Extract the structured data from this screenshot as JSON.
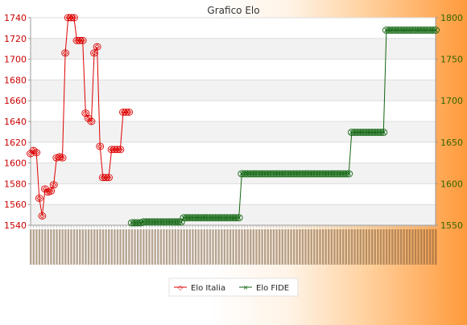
{
  "chart_data": {
    "type": "line",
    "title": "Grafico Elo",
    "grid": true,
    "legend_placement": "bottom-center",
    "left_axis": {
      "ticks": [
        1540,
        1560,
        1580,
        1600,
        1620,
        1640,
        1660,
        1680,
        1700,
        1720,
        1740
      ],
      "range": [
        1540,
        1740
      ],
      "color": "#cc0000"
    },
    "right_axis": {
      "ticks": [
        1550,
        1600,
        1650,
        1700,
        1750,
        1800
      ],
      "range": [
        1550,
        1800
      ],
      "color": "#336600"
    },
    "series": [
      {
        "name": "Elo Italia",
        "color": "#dd0000",
        "axis": "left",
        "values": [
          1609,
          1612,
          1610,
          1566,
          1549,
          1575,
          1572,
          1573,
          1579,
          1605,
          1606,
          1605,
          1706,
          1740,
          1740,
          1740,
          1718,
          1718,
          1718,
          1648,
          1643,
          1640,
          1706,
          1712,
          1616,
          1586,
          1586,
          1586,
          1613,
          1613,
          1613,
          1613,
          1649,
          1649,
          1649
        ]
      },
      {
        "name": "Elo FIDE",
        "color": "#116611",
        "axis": "right",
        "start_index": 35,
        "values": [
          1553,
          1553,
          1553,
          1553,
          1554,
          1554,
          1554,
          1554,
          1554,
          1554,
          1554,
          1554,
          1554,
          1554,
          1554,
          1554,
          1554,
          1554,
          1559,
          1559,
          1559,
          1559,
          1559,
          1559,
          1559,
          1559,
          1559,
          1559,
          1559,
          1559,
          1559,
          1559,
          1559,
          1559,
          1559,
          1559,
          1559,
          1559,
          1612,
          1612,
          1612,
          1612,
          1612,
          1612,
          1612,
          1612,
          1612,
          1612,
          1612,
          1612,
          1612,
          1612,
          1612,
          1612,
          1612,
          1612,
          1612,
          1612,
          1612,
          1612,
          1612,
          1612,
          1612,
          1612,
          1612,
          1612,
          1612,
          1612,
          1612,
          1612,
          1612,
          1612,
          1612,
          1612,
          1612,
          1612,
          1662,
          1662,
          1662,
          1662,
          1662,
          1662,
          1662,
          1662,
          1662,
          1662,
          1662,
          1662,
          1785,
          1785,
          1785,
          1785,
          1785,
          1785,
          1785,
          1785,
          1785,
          1785,
          1785,
          1785,
          1785,
          1785,
          1785,
          1785,
          1785,
          1785
        ]
      }
    ]
  }
}
